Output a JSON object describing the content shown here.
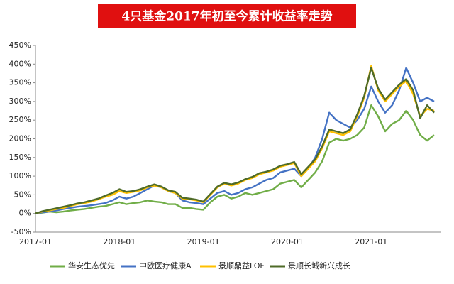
{
  "chart_data": {
    "type": "line",
    "title": "4只基金2017年初至今累计收益率走势",
    "categories": [
      "2017-01",
      null,
      null,
      null,
      null,
      null,
      null,
      null,
      null,
      null,
      null,
      null,
      "2018-01",
      null,
      null,
      null,
      null,
      null,
      null,
      null,
      null,
      null,
      null,
      null,
      "2019-01",
      null,
      null,
      null,
      null,
      null,
      null,
      null,
      null,
      null,
      null,
      null,
      "2020-01",
      null,
      null,
      null,
      null,
      null,
      null,
      null,
      null,
      null,
      null,
      null,
      "2021-01",
      null,
      null,
      null,
      null,
      null,
      null,
      null,
      null,
      null
    ],
    "series": [
      {
        "name": "华安生态优先",
        "color": "#70ad47",
        "values": [
          0,
          2,
          5,
          3,
          5,
          8,
          10,
          12,
          15,
          18,
          20,
          25,
          30,
          25,
          28,
          30,
          35,
          32,
          30,
          25,
          25,
          15,
          15,
          12,
          10,
          30,
          45,
          50,
          40,
          45,
          55,
          50,
          55,
          60,
          65,
          80,
          85,
          90,
          70,
          90,
          110,
          140,
          190,
          200,
          195,
          200,
          210,
          230,
          290,
          260,
          220,
          240,
          250,
          275,
          250,
          210,
          195,
          210
        ]
      },
      {
        "name": "中欧医疗健康A",
        "color": "#4472c4",
        "values": [
          0,
          3,
          5,
          8,
          12,
          15,
          18,
          20,
          22,
          25,
          28,
          35,
          45,
          40,
          45,
          55,
          65,
          75,
          70,
          60,
          55,
          35,
          30,
          28,
          25,
          40,
          55,
          60,
          50,
          55,
          65,
          70,
          80,
          90,
          95,
          110,
          115,
          120,
          100,
          120,
          150,
          200,
          270,
          250,
          240,
          230,
          250,
          280,
          340,
          300,
          270,
          290,
          330,
          390,
          350,
          300,
          310,
          300
        ]
      },
      {
        "name": "景顺鼎益LOF",
        "color": "#ffc000",
        "values": [
          0,
          5,
          8,
          12,
          15,
          20,
          25,
          28,
          32,
          38,
          45,
          50,
          60,
          55,
          58,
          62,
          70,
          75,
          70,
          60,
          55,
          40,
          38,
          35,
          30,
          50,
          70,
          80,
          75,
          80,
          90,
          95,
          105,
          110,
          115,
          125,
          130,
          135,
          100,
          120,
          140,
          175,
          220,
          215,
          210,
          220,
          260,
          310,
          395,
          330,
          300,
          320,
          340,
          355,
          320,
          260,
          280,
          275
        ]
      },
      {
        "name": "景顺长城新兴成长",
        "color": "#4f6b28",
        "values": [
          0,
          6,
          10,
          14,
          18,
          22,
          27,
          30,
          35,
          40,
          48,
          55,
          65,
          58,
          60,
          65,
          72,
          78,
          72,
          62,
          58,
          42,
          40,
          37,
          32,
          52,
          72,
          82,
          78,
          83,
          92,
          98,
          108,
          112,
          118,
          128,
          132,
          138,
          105,
          125,
          145,
          180,
          225,
          220,
          215,
          225,
          265,
          315,
          390,
          335,
          305,
          325,
          345,
          360,
          330,
          255,
          290,
          270
        ]
      }
    ],
    "ylim": [
      -50,
      450
    ],
    "yticks": [
      {
        "value": -50,
        "label": "-50%"
      },
      {
        "value": 0,
        "label": "0%"
      },
      {
        "value": 50,
        "label": "50%"
      },
      {
        "value": 100,
        "label": "100%"
      },
      {
        "value": 150,
        "label": "150%"
      },
      {
        "value": 200,
        "label": "200%"
      },
      {
        "value": 250,
        "label": "250%"
      },
      {
        "value": 300,
        "label": "300%"
      },
      {
        "value": 350,
        "label": "350%"
      },
      {
        "value": 400,
        "label": "400%"
      },
      {
        "value": 450,
        "label": "450%"
      }
    ]
  }
}
